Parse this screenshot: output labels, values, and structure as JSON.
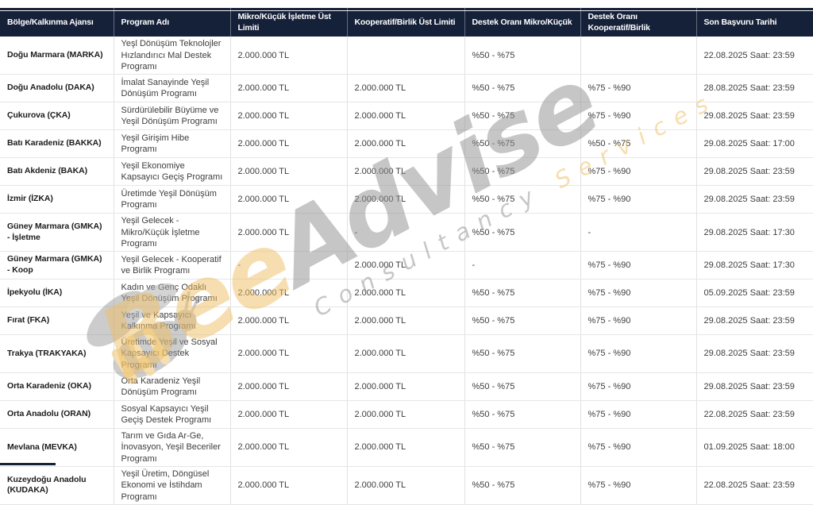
{
  "colors": {
    "header_bg": "#152039",
    "header_text": "#ffffff",
    "body_text": "#3d3d3d",
    "agency_text": "#1c1c1c",
    "grid_border": "#e2e2e2",
    "watermark_yellow": "#eebf63",
    "watermark_gray": "#8f8f8f"
  },
  "watermark": {
    "brand_first": "Bee",
    "brand_second": "Advise",
    "tagline_first": "Consultancy",
    "tagline_second": "Services"
  },
  "table": {
    "columns": [
      "Bölge/Kalkınma Ajansı",
      "Program Adı",
      "Mikro/Küçük İşletme Üst Limiti",
      "Kooperatif/Birlik Üst Limiti",
      "Destek Oranı Mikro/Küçük",
      "Destek Oranı Kooperatif/Birlik",
      "Son Başvuru Tarihi"
    ],
    "row_keys": [
      "agency",
      "program",
      "micro_limit",
      "coop_limit",
      "micro_rate",
      "coop_rate",
      "deadline"
    ],
    "rows": [
      {
        "agency": "Doğu Marmara (MARKA)",
        "program": "Yeşl Dönüşüm Teknolojler Hızlandırıcı Mal Destek Programı",
        "micro_limit": "2.000.000 TL",
        "coop_limit": "",
        "micro_rate": "%50 - %75",
        "coop_rate": "",
        "deadline": "22.08.2025 Saat: 23:59"
      },
      {
        "agency": "Doğu Anadolu (DAKA)",
        "program": "İmalat Sanayinde Yeşil Dönüşüm Programı",
        "micro_limit": "2.000.000 TL",
        "coop_limit": "2.000.000 TL",
        "micro_rate": "%50 - %75",
        "coop_rate": "%75 - %90",
        "deadline": "28.08.2025 Saat: 23:59"
      },
      {
        "agency": "Çukurova (ÇKA)",
        "program": "Sürdürülebilir Büyüme ve Yeşil Dönüşüm Programı",
        "micro_limit": "2.000.000 TL",
        "coop_limit": "2.000.000 TL",
        "micro_rate": "%50 - %75",
        "coop_rate": "%75 - %90",
        "deadline": "29.08.2025 Saat: 23:59"
      },
      {
        "agency": "Batı Karadeniz (BAKKA)",
        "program": "Yeşil Girişim Hibe Programı",
        "micro_limit": "2.000.000 TL",
        "coop_limit": "2.000.000 TL",
        "micro_rate": "%50 - %75",
        "coop_rate": "%50 - %75",
        "deadline": "29.08.2025 Saat: 17:00"
      },
      {
        "agency": "Batı Akdeniz (BAKA)",
        "program": "Yeşil Ekonomiye Kapsayıcı Geçiş Programı",
        "micro_limit": "2.000.000 TL",
        "coop_limit": "2.000.000 TL",
        "micro_rate": "%50 - %75",
        "coop_rate": "%75 - %90",
        "deadline": "29.08.2025 Saat: 23:59"
      },
      {
        "agency": "İzmir (İZKA)",
        "program": "Üretimde Yeşil Dönüşüm Programı",
        "micro_limit": "2.000.000 TL",
        "coop_limit": "2.000.000 TL",
        "micro_rate": "%50 - %75",
        "coop_rate": "%75 - %90",
        "deadline": "29.08.2025 Saat: 23:59"
      },
      {
        "agency": "Güney Marmara (GMKA) - İşletme",
        "program": "Yeşil Gelecek - Mikro/Küçük İşletme Programı",
        "micro_limit": "2.000.000 TL",
        "coop_limit": "-",
        "micro_rate": "%50 - %75",
        "coop_rate": "-",
        "deadline": "29.08.2025 Saat: 17:30"
      },
      {
        "agency": "Güney Marmara (GMKA) - Koop",
        "program": "Yeşil Gelecek - Kooperatif ve Birlik Programı",
        "micro_limit": "-",
        "coop_limit": "2.000.000 TL",
        "micro_rate": "-",
        "coop_rate": "%75 - %90",
        "deadline": "29.08.2025 Saat: 17:30"
      },
      {
        "agency": "İpekyolu (İKA)",
        "program": "Kadın ve Genç Odaklı Yeşil Dönüşüm Programı",
        "micro_limit": "2.000.000 TL",
        "coop_limit": "2.000.000 TL",
        "micro_rate": "%50 - %75",
        "coop_rate": "%75 - %90",
        "deadline": "05.09.2025 Saat: 23:59"
      },
      {
        "agency": "Fırat (FKA)",
        "program": "Yeşil ve Kapsayıcı Kalkınma Programı",
        "micro_limit": "2.000.000 TL",
        "coop_limit": "2.000.000 TL",
        "micro_rate": "%50 - %75",
        "coop_rate": "%75 - %90",
        "deadline": "29.08.2025 Saat: 23:59"
      },
      {
        "agency": "Trakya (TRAKYAKA)",
        "program": "Üretimde Yeşil ve Sosyal Kapsayıcı Destek Programı",
        "micro_limit": "2.000.000 TL",
        "coop_limit": "2.000.000 TL",
        "micro_rate": "%50 - %75",
        "coop_rate": "%75 - %90",
        "deadline": "29.08.2025 Saat: 23:59"
      },
      {
        "agency": "Orta Karadeniz (OKA)",
        "program": "Orta Karadeniz Yeşil Dönüşüm Programı",
        "micro_limit": "2.000.000 TL",
        "coop_limit": "2.000.000 TL",
        "micro_rate": "%50 - %75",
        "coop_rate": "%75 - %90",
        "deadline": "29.08.2025 Saat: 23:59"
      },
      {
        "agency": "Orta Anadolu (ORAN)",
        "program": "Sosyal Kapsayıcı Yeşil Geçiş Destek Programı",
        "micro_limit": "2.000.000 TL",
        "coop_limit": "2.000.000 TL",
        "micro_rate": "%50 - %75",
        "coop_rate": "%75 - %90",
        "deadline": "22.08.2025 Saat: 23:59"
      },
      {
        "agency": "Mevlana (MEVKA)",
        "program": "Tarım ve Gıda Ar-Ge, İnovasyon, Yeşil Beceriler Programı",
        "micro_limit": "2.000.000 TL",
        "coop_limit": "2.000.000 TL",
        "micro_rate": "%50 - %75",
        "coop_rate": "%75 - %90",
        "deadline": "01.09.2025 Saat: 18:00"
      },
      {
        "agency": "Kuzeydoğu Anadolu (KUDAKA)",
        "program": "Yeşil Üretim, Döngüsel Ekonomi ve İstihdam Programı",
        "micro_limit": "2.000.000 TL",
        "coop_limit": "2.000.000 TL",
        "micro_rate": "%50 - %75",
        "coop_rate": "%75 - %90",
        "deadline": "22.08.2025 Saat: 23:59"
      }
    ]
  }
}
